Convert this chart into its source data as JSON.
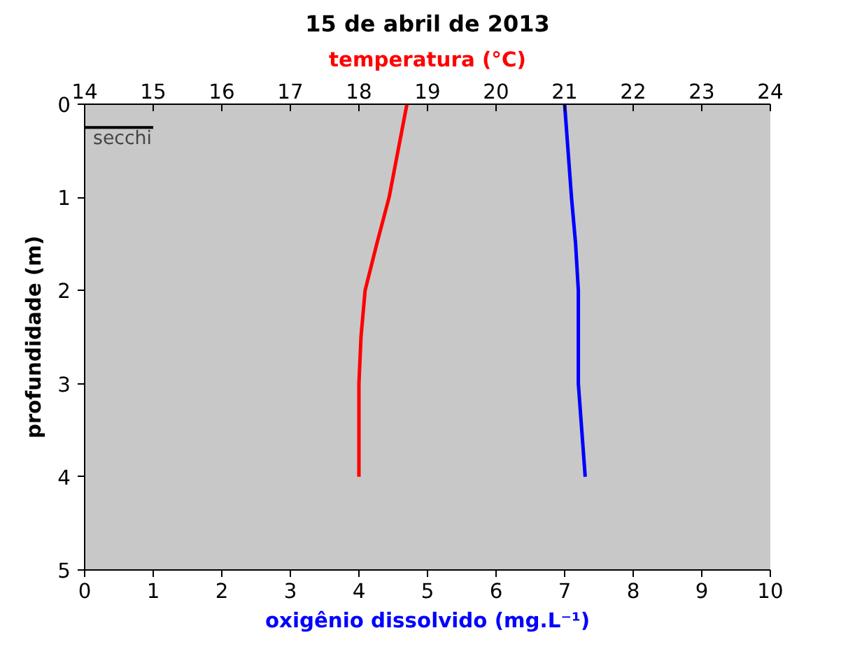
{
  "chart_data": {
    "type": "line",
    "orientation": "horizontal",
    "title": "15 de abril de 2013",
    "xlabel": "oxigênio dissolvido (mg.L⁻¹)",
    "x2label": "temperatura (°C)",
    "ylabel": "profundidade (m)",
    "xlim": [
      0,
      10
    ],
    "xticks": [
      0,
      1,
      2,
      3,
      4,
      5,
      6,
      7,
      8,
      9,
      10
    ],
    "x2lim": [
      14,
      24
    ],
    "x2ticks": [
      14,
      15,
      16,
      17,
      18,
      19,
      20,
      21,
      22,
      23,
      24
    ],
    "ylim": [
      5,
      0
    ],
    "yticks": [
      0,
      1,
      2,
      3,
      4,
      5
    ],
    "series": [
      {
        "color": "#ff0000",
        "axis": "x2",
        "x": [
          0,
          1,
          1.5,
          2,
          2.5,
          3,
          4
        ],
        "values": [
          18.7,
          18.44,
          18.26,
          18.09,
          18.03,
          18.0,
          18.0
        ]
      },
      {
        "color": "#0000ff",
        "x": [
          0,
          1,
          1.5,
          2,
          2.5,
          3,
          3.5,
          4
        ],
        "values": [
          7.0,
          7.1,
          7.16,
          7.2,
          7.2,
          7.2,
          7.25,
          7.3
        ]
      }
    ],
    "ref_lines": [
      {
        "axis": "y",
        "value": 0.25,
        "label": "secchi",
        "color": "#000000"
      }
    ],
    "grid": false
  }
}
